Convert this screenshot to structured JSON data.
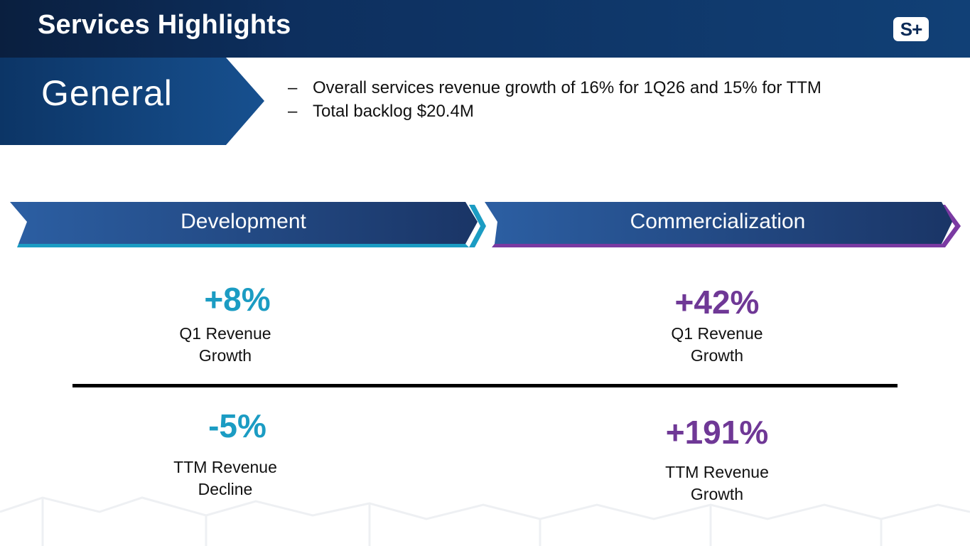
{
  "header": {
    "title": "Services Highlights",
    "logo_text": "S+"
  },
  "general": {
    "label": "General",
    "bullets": [
      {
        "marker": "–",
        "text": "Overall services revenue growth of 16% for 1Q26 and 15% for TTM"
      },
      {
        "marker": "–",
        "text": "Total backlog $20.4M"
      }
    ]
  },
  "sections": {
    "development": {
      "label": "Development",
      "color": "#1b9cc3",
      "q1": {
        "value": "+8%",
        "line1": "Q1 Revenue",
        "line2": "Growth"
      },
      "ttm": {
        "value": "-5%",
        "line1": "TTM Revenue",
        "line2": "Decline"
      }
    },
    "commercialization": {
      "label": "Commercialization",
      "color": "#6f3896",
      "q1": {
        "value": "+42%",
        "line1": "Q1 Revenue",
        "line2": "Growth"
      },
      "ttm": {
        "value": "+191%",
        "line1": "TTM Revenue",
        "line2": "Growth"
      }
    }
  },
  "colors": {
    "header_dark": "#0a1f3f",
    "banner_blue": "#0d3a6e",
    "accent_cyan": "#1b9cc3",
    "accent_purple": "#6f3896"
  }
}
